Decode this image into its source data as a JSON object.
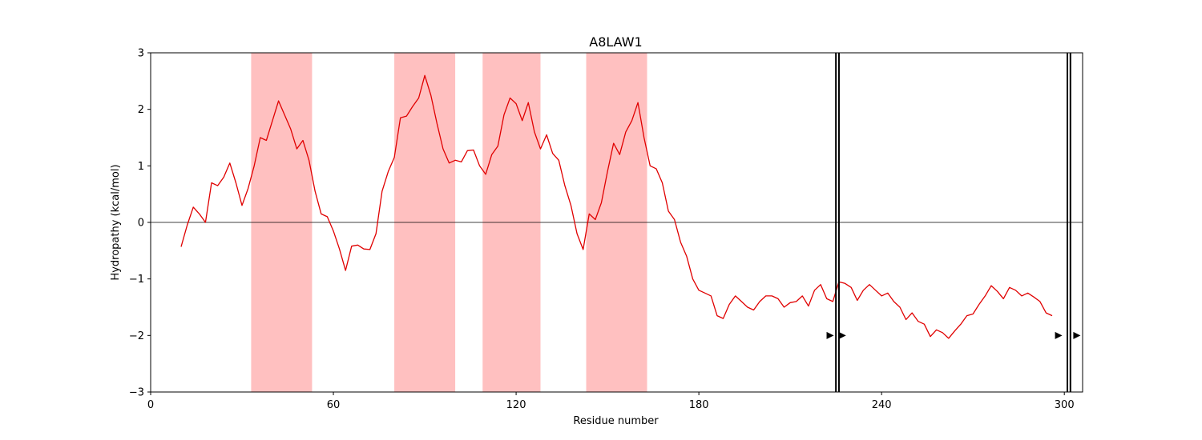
{
  "chart_data": {
    "type": "line",
    "title": "A8LAW1",
    "xlabel": "Residue number",
    "ylabel": "Hydropathy (kcal/mol)",
    "xlim": [
      0,
      306
    ],
    "ylim": [
      -3,
      3
    ],
    "xticks": [
      0,
      60,
      120,
      180,
      240,
      300
    ],
    "yticks": [
      -3,
      -2,
      -1,
      0,
      1,
      2,
      3
    ],
    "ytick_labels": [
      "−3",
      "−2",
      "−1",
      "0",
      "1",
      "2",
      "3"
    ],
    "zero_line": 0,
    "line_color": "#e00000",
    "band_color": "#ffc0c0",
    "marker_color": "#000000",
    "hydrophobic_regions": [
      {
        "start": 33,
        "end": 53
      },
      {
        "start": 80,
        "end": 100
      },
      {
        "start": 109,
        "end": 128
      },
      {
        "start": 143,
        "end": 163
      }
    ],
    "vertical_lines": [
      225,
      226,
      301,
      302
    ],
    "markers": [
      {
        "x": 223,
        "y": -2
      },
      {
        "x": 227,
        "y": -2
      },
      {
        "x": 298,
        "y": -2
      },
      {
        "x": 304,
        "y": -2
      }
    ],
    "x": [
      10,
      12,
      14,
      16,
      18,
      20,
      22,
      24,
      26,
      28,
      30,
      32,
      34,
      36,
      38,
      40,
      42,
      44,
      46,
      48,
      50,
      52,
      54,
      56,
      58,
      60,
      62,
      64,
      66,
      68,
      70,
      72,
      74,
      76,
      78,
      80,
      82,
      84,
      86,
      88,
      90,
      92,
      94,
      96,
      98,
      100,
      102,
      104,
      106,
      108,
      110,
      112,
      114,
      116,
      118,
      120,
      122,
      124,
      126,
      128,
      130,
      132,
      134,
      136,
      138,
      140,
      142,
      144,
      146,
      148,
      150,
      152,
      154,
      156,
      158,
      160,
      162,
      164,
      166,
      168,
      170,
      172,
      174,
      176,
      178,
      180,
      182,
      184,
      186,
      188,
      190,
      192,
      194,
      196,
      198,
      200,
      202,
      204,
      206,
      208,
      210,
      212,
      214,
      216,
      218,
      220,
      222,
      224,
      226,
      228,
      230,
      232,
      234,
      236,
      238,
      240,
      242,
      244,
      246,
      248,
      250,
      252,
      254,
      256,
      258,
      260,
      262,
      264,
      266,
      268,
      270,
      272,
      274,
      276,
      278,
      280,
      282,
      284,
      286,
      288,
      290,
      292,
      294,
      296
    ],
    "y": [
      -0.43,
      -0.05,
      0.27,
      0.15,
      0.0,
      0.7,
      0.65,
      0.8,
      1.05,
      0.7,
      0.3,
      0.6,
      1.0,
      1.5,
      1.45,
      1.8,
      2.15,
      1.9,
      1.65,
      1.3,
      1.45,
      1.1,
      0.55,
      0.15,
      0.1,
      -0.15,
      -0.47,
      -0.85,
      -0.42,
      -0.4,
      -0.47,
      -0.48,
      -0.2,
      0.55,
      0.9,
      1.15,
      1.85,
      1.88,
      2.05,
      2.2,
      2.6,
      2.25,
      1.75,
      1.3,
      1.05,
      1.1,
      1.07,
      1.27,
      1.28,
      1.0,
      0.85,
      1.2,
      1.35,
      1.9,
      2.2,
      2.1,
      1.8,
      2.12,
      1.6,
      1.3,
      1.55,
      1.22,
      1.1,
      0.65,
      0.3,
      -0.2,
      -0.48,
      0.15,
      0.05,
      0.35,
      0.9,
      1.4,
      1.2,
      1.6,
      1.8,
      2.12,
      1.5,
      1.0,
      0.95,
      0.7,
      0.2,
      0.05,
      -0.35,
      -0.6,
      -1.0,
      -1.2,
      -1.25,
      -1.3,
      -1.65,
      -1.7,
      -1.45,
      -1.3,
      -1.4,
      -1.5,
      -1.55,
      -1.4,
      -1.3,
      -1.3,
      -1.35,
      -1.5,
      -1.42,
      -1.4,
      -1.3,
      -1.48,
      -1.2,
      -1.1,
      -1.35,
      -1.4,
      -1.05,
      -1.08,
      -1.15,
      -1.38,
      -1.2,
      -1.1,
      -1.2,
      -1.3,
      -1.25,
      -1.4,
      -1.5,
      -1.72,
      -1.6,
      -1.75,
      -1.8,
      -2.02,
      -1.9,
      -1.95,
      -2.05,
      -1.92,
      -1.8,
      -1.65,
      -1.62,
      -1.45,
      -1.3,
      -1.12,
      -1.22,
      -1.35,
      -1.15,
      -1.2,
      -1.3,
      -1.25,
      -1.32,
      -1.4,
      -1.6,
      -1.65
    ]
  }
}
